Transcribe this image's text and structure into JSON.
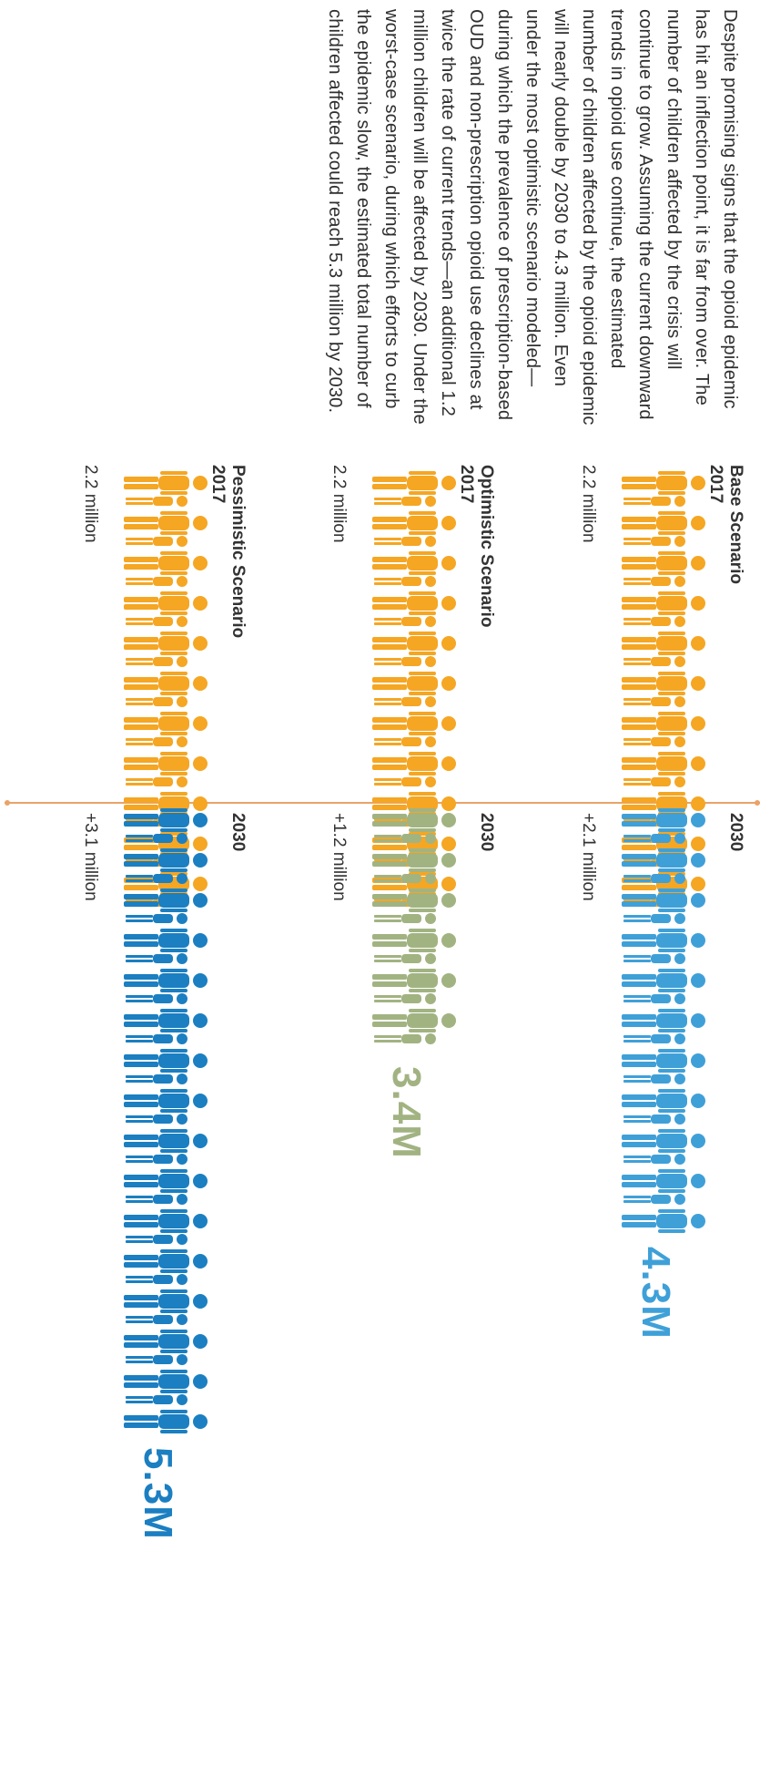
{
  "intro_text": "Despite promising signs that the opioid epidemic has hit an inflection point, it is far from over. The number of children affected by the crisis will continue to grow. Assuming the current downward trends in opioid use continue, the estimated number of children affected by the opioid epidemic will nearly double by 2030 to 4.3 million. Even under the most optimistic scenario modeled—during which the prevalence of prescription-based OUD and non-prescription opioid use declines at twice the rate of current trends—an additional 1.2 million children will be affected by 2030. Under the worst-case scenario, during which efforts to curb the epidemic slow, the estimated total number of children affected could reach 5.3 million by 2030.",
  "colors": {
    "base_2017": "#f5a623",
    "base_2030": "#3fa0d8",
    "opt_2017": "#f5a623",
    "opt_2030": "#a2b382",
    "pess_2017": "#f5a623",
    "pess_2030": "#1b7fc1"
  },
  "chart_data": [
    {
      "type": "pictogram",
      "title": "Base Scenario",
      "year_start": "2017",
      "year_end": "2030",
      "start_label": "2.2 million",
      "added_label": "+2.1 million",
      "total_label": "4.3M",
      "start_value": 2.2,
      "added_value": 2.1,
      "total_value": 4.3
    },
    {
      "type": "pictogram",
      "title": "Optimistic Scenario",
      "year_start": "2017",
      "year_end": "2030",
      "start_label": "2.2 million",
      "added_label": "+1.2 million",
      "total_label": "3.4M",
      "start_value": 2.2,
      "added_value": 1.2,
      "total_value": 3.4
    },
    {
      "type": "pictogram",
      "title": "Pessimistic Scenario",
      "year_start": "2017",
      "year_end": "2030",
      "start_label": "2.2 million",
      "added_label": "+3.1 million",
      "total_label": "5.3M",
      "start_value": 2.2,
      "added_value": 3.1,
      "total_value": 5.3
    }
  ]
}
